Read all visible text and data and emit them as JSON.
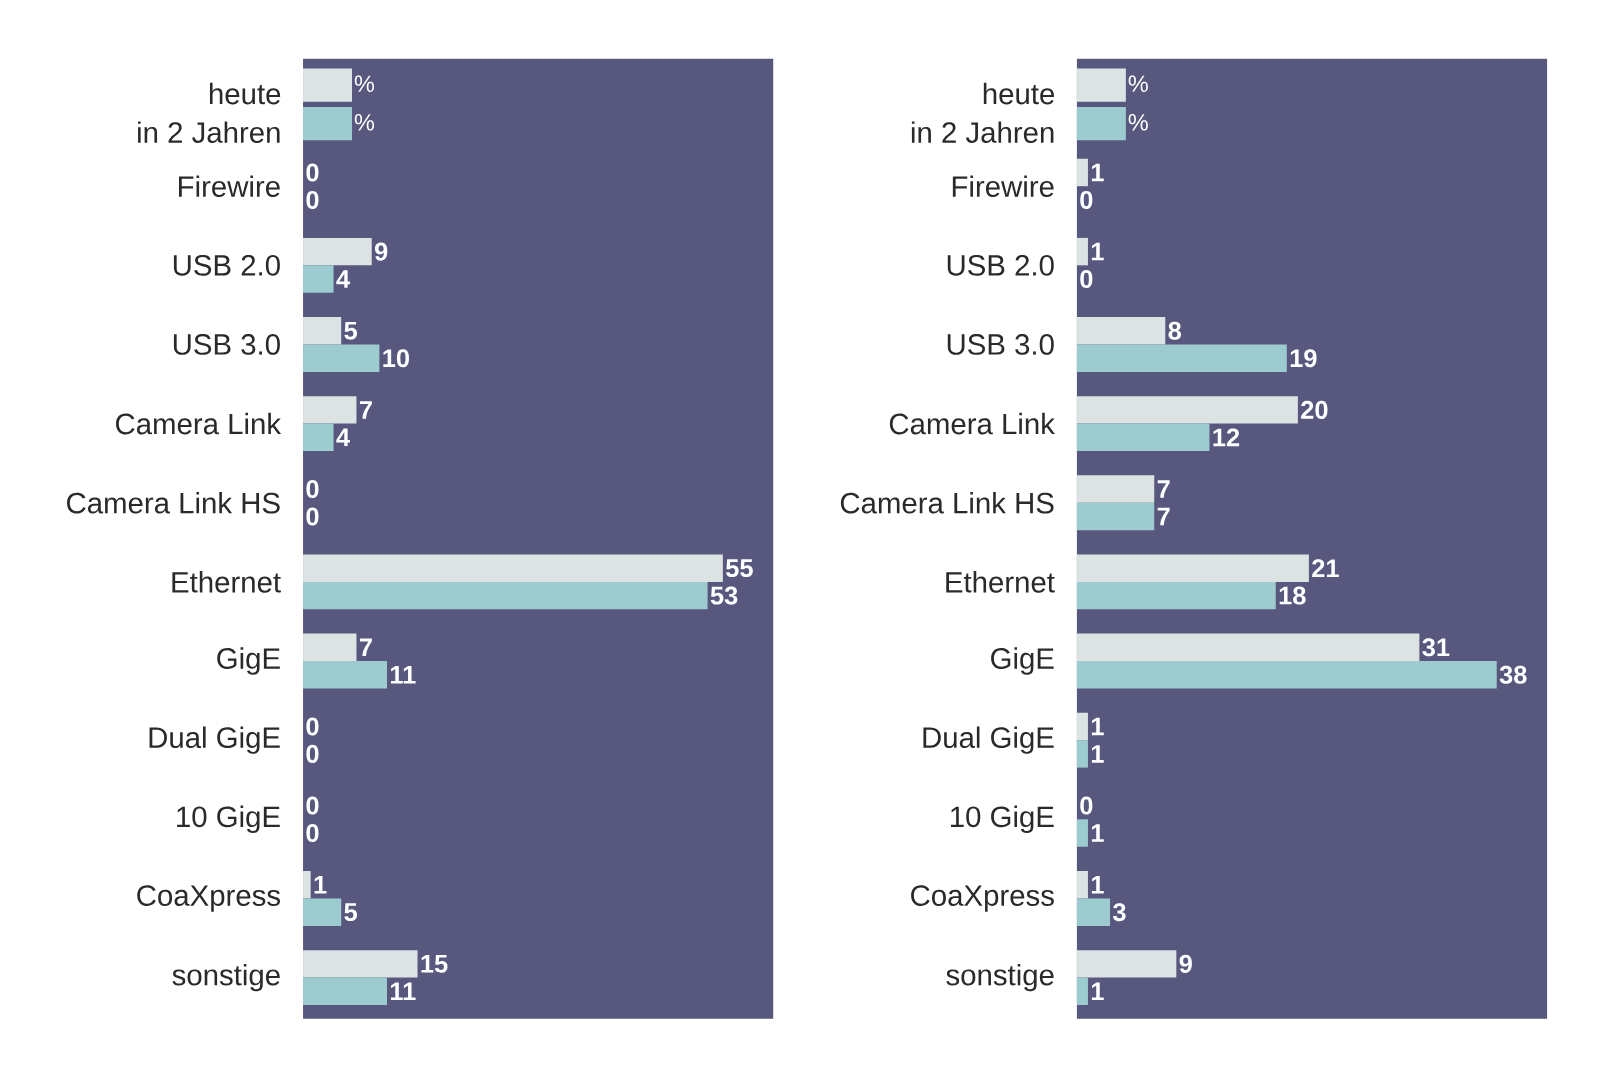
{
  "chart_data": [
    {
      "type": "bar",
      "orientation": "horizontal",
      "xlabel": "%",
      "legend": "top left",
      "data_labels": true,
      "categories": [
        "Firewire",
        "USB 2.0",
        "USB 3.0",
        "Camera Link",
        "Camera Link HS",
        "Ethernet",
        "GigE",
        "Dual GigE",
        "10 GigE",
        "CoaXpress",
        "sonstige"
      ],
      "series": [
        {
          "name": "heute",
          "color": "#dde3e3",
          "values": [
            0,
            9,
            5,
            7,
            0,
            55,
            7,
            0,
            0,
            1,
            15
          ]
        },
        {
          "name": "in 2 Jahren",
          "color": "#9ccbd0",
          "values": [
            0,
            4,
            10,
            4,
            0,
            53,
            11,
            0,
            0,
            5,
            11
          ]
        }
      ]
    },
    {
      "type": "bar",
      "orientation": "horizontal",
      "xlabel": "%",
      "legend": "top left",
      "data_labels": true,
      "categories": [
        "Firewire",
        "USB 2.0",
        "USB 3.0",
        "Camera Link",
        "Camera Link HS",
        "Ethernet",
        "GigE",
        "Dual GigE",
        "10 GigE",
        "CoaXpress",
        "sonstige"
      ],
      "series": [
        {
          "name": "heute",
          "color": "#dde3e3",
          "values": [
            1,
            1,
            8,
            20,
            7,
            21,
            31,
            1,
            0,
            1,
            9
          ]
        },
        {
          "name": "in 2 Jahren",
          "color": "#9ccbd0",
          "values": [
            0,
            0,
            19,
            12,
            7,
            18,
            38,
            1,
            1,
            3,
            1
          ]
        }
      ]
    }
  ]
}
